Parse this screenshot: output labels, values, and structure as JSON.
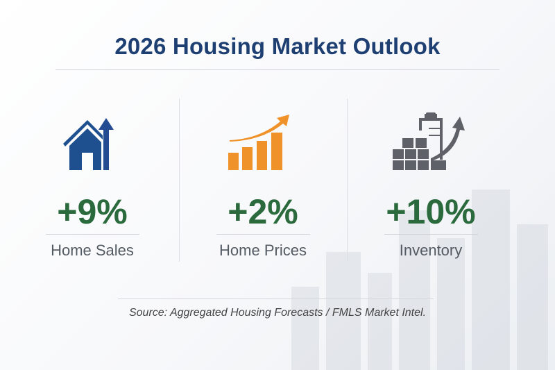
{
  "title": "2026 Housing Market Outlook",
  "metrics": [
    {
      "icon": "house-arrow-up-icon",
      "value": "+9%",
      "label": "Home Sales",
      "color": "#1e4f8f"
    },
    {
      "icon": "bar-chart-growth-icon",
      "value": "+2%",
      "label": "Home Prices",
      "color": "#f0922a"
    },
    {
      "icon": "inventory-clipboard-arrow-icon",
      "value": "+10%",
      "label": "Inventory",
      "color": "#5e6268"
    }
  ],
  "source": "Source: Aggregated Housing Forecasts / FMLS Market Intel."
}
